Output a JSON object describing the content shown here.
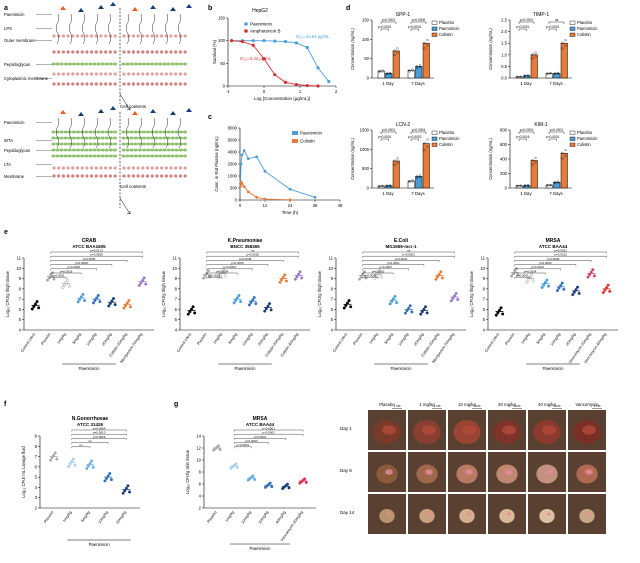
{
  "panel_a": {
    "label": "a",
    "gram_neg_labels": [
      "Paenimicin",
      "LPS",
      "Outer membrane",
      "Peptidoglycan",
      "Cytoplasmic membrane"
    ],
    "gram_pos_labels": [
      "Paenimicin",
      "WTA",
      "Peptidoglycan",
      "LTA",
      "Membrane"
    ],
    "cell_contents_top": "Cell contents",
    "cell_contents_bottom": "Cell contents"
  },
  "panel_b": {
    "label": "b",
    "title": "HepG2",
    "ylabel": "Survival (%)",
    "xlabel": "Log [Concentration (μg/mL)]",
    "legend": [
      "Paenimicin",
      "Amphotericin B"
    ],
    "ic50_paenimicin": "IC₅₀=24.84 μg/mL",
    "ic50_amphotericin": "IC₅₀=2.42 μg/mL",
    "yticks": [
      "150",
      "100",
      "50",
      "0"
    ],
    "xticks": [
      "-1",
      "0",
      "1",
      "2"
    ]
  },
  "panel_c": {
    "label": "c",
    "ylabel": "Conc. in Rat Plasma (ng/mL)",
    "xlabel": "Time (h)",
    "legend": [
      "Paenimicin",
      "Colistin"
    ],
    "yticks": [
      "8000",
      "6000",
      "4000",
      "2000",
      "1000",
      "500",
      "0"
    ],
    "xticks": [
      "0",
      "12",
      "24",
      "36",
      "48"
    ]
  },
  "panel_d": {
    "label": "d",
    "legend": [
      "Placebo",
      "Paenimicin",
      "Colistin"
    ],
    "groups": [
      "1 Day",
      "7 Days"
    ],
    "ylabel": "Concentration (ng/mL)",
    "charts": [
      {
        "title": "SPP-1",
        "yticks": [
          "150",
          "100",
          "50",
          "0"
        ],
        "pvals": [
          "p<0.0001",
          "p=0.0006",
          "p=0.0001",
          "p<0.0001"
        ]
      },
      {
        "title": "TIMP-1",
        "yticks": [
          "2.5",
          "2.0",
          "1.5",
          "1.0",
          "0.5",
          "0.0"
        ],
        "pvals": [
          "p<0.0001",
          "ns",
          "p<0.0001",
          "p=0.0001"
        ]
      },
      {
        "title": "LCN-2",
        "yticks": [
          "1500",
          "1000",
          "500",
          "0"
        ],
        "pvals": [
          "p<0.0001",
          "p=0.0004",
          "p<0.0001",
          "p=0.0002"
        ]
      },
      {
        "title": "KIM-1",
        "yticks": [
          "800",
          "600",
          "400",
          "200",
          "0"
        ],
        "pvals": [
          "p=0.0004",
          "p<0.0001",
          "p=0.0016",
          "p=0.0001"
        ]
      }
    ]
  },
  "panel_e": {
    "label": "e",
    "ylabel": "Log₁₀ CFU/g thigh tissue",
    "yticks": [
      "11",
      "10",
      "9",
      "8",
      "7",
      "6",
      "5",
      "4"
    ],
    "group_label": "Paenimicin",
    "charts": [
      {
        "title": "CRAB",
        "subtitle": "ATCC BAA1605",
        "categories": [
          "Control infect",
          "Placebo",
          "1mg/kg",
          "5mg/kg",
          "10mg/kg",
          "20mg/kg",
          "Colistin 20mg/kg",
          "Meropenem 20mg/kg"
        ],
        "pvals": [
          "p=0.0172",
          "p=0.0005",
          "p=0.0005",
          "p=0.0008",
          "p=0.0005",
          "p=0.0018",
          "p<0.0001"
        ]
      },
      {
        "title": "K.Pneumoniae",
        "subtitle": "BNCC 358365",
        "categories": [
          "Control infect",
          "Placebo",
          "1mg/kg",
          "5mg/kg",
          "10mg/kg",
          "20mg/kg",
          "Colistin 20mg/kg",
          "Colistin 40mg/kg"
        ],
        "pvals": [
          "ns",
          "p=0.0018",
          "p=0.0008",
          "p=0.0005",
          "p=0.0004",
          "p=0.0004",
          "p<0.0001"
        ]
      },
      {
        "title": "E.Coli",
        "subtitle": "MG1655-mcr-1",
        "categories": [
          "Control infect",
          "Placebo",
          "1mg/kg",
          "5mg/kg",
          "10mg/kg",
          "20mg/kg",
          "Colistin 20mg/kg",
          "Meropenem 20mg/kg"
        ],
        "pvals": [
          "ns",
          "p=0.0001",
          "p=0.0001",
          "p=0.0001",
          "p=0.0007",
          "p=0.0002",
          "p<0.0001"
        ]
      },
      {
        "title": "MRSA",
        "subtitle": "ATCC BAA44",
        "categories": [
          "Control infect",
          "Placebo",
          "1mg/kg",
          "5mg/kg",
          "10mg/kg",
          "20mg/kg",
          "Vancomycin 20mg/kg",
          "Vancomycin 40mg/kg"
        ],
        "pvals": [
          "p=0.0031",
          "p=0.0012",
          "p=0.0009",
          "p=0.0025",
          "p=0.0012",
          "p=0.0034",
          "p<0.0001"
        ]
      }
    ]
  },
  "panel_f": {
    "label": "f",
    "title": "N.Gonorrhoeae",
    "subtitle": "ATCC 31426",
    "ylabel": "Log₁₀ CFU/ mL Lavage fluid",
    "yticks": [
      "9",
      "8",
      "7",
      "6",
      "5",
      "4",
      "3",
      "2"
    ],
    "categories": [
      "Placebo",
      "1mg/kg",
      "5mg/kg",
      "10mg/kg",
      "20mg/kg"
    ],
    "group_label": "Paenimicin",
    "pvals": [
      "p=0.0004",
      "p=0.0010",
      "p=0.0026",
      "ns",
      "ns"
    ]
  },
  "panel_g": {
    "label": "g",
    "title": "MRSA",
    "subtitle": "ATCC BAA44",
    "ylabel": "Log₁₀ CFU/g skin tissue",
    "yticks": [
      "14",
      "12",
      "10",
      "8",
      "6",
      "4",
      "2"
    ],
    "categories": [
      "Placebo",
      "1mg/kg",
      "10mg/kg",
      "20mg/kg",
      "40mg/kg",
      "Vancomycin 20mg/kg"
    ],
    "group_label": "Paenimicin",
    "pvals": [
      "p<0.0001",
      "p<0.0001",
      "p=0.0001",
      "p=0.0003",
      "p=0.0001"
    ]
  },
  "wound_photos": {
    "columns": [
      "Placebo",
      "1 mg/kg",
      "10 mg/kg",
      "20 mg/kg",
      "40 mg/kg",
      "Vancomycin"
    ],
    "scale": "1 cm",
    "rows": [
      "Day 1",
      "Day 8",
      "Day 14"
    ],
    "row_colors": [
      [
        "#7a3a2a",
        "#8a3f30",
        "#9a4434",
        "#7e3428",
        "#8d3a2e",
        "#7a2f26"
      ],
      [
        "#8b5a3a",
        "#a0684a",
        "#b87a60",
        "#c08870",
        "#c49080",
        "#b06a52"
      ],
      [
        "#b8956e",
        "#c9a080",
        "#d4b090",
        "#d8b898",
        "#dcc0a4",
        "#caa688"
      ]
    ]
  },
  "chart_data": [
    {
      "type": "line",
      "panel": "b",
      "title": "HepG2",
      "xlabel": "Log [Concentration (μg/mL)]",
      "ylabel": "Survival (%)",
      "xlim": [
        -1,
        2
      ],
      "ylim": [
        0,
        150
      ],
      "series": [
        {
          "name": "Paenimicin",
          "color": "#4a9ed8",
          "x": [
            -0.9,
            -0.6,
            -0.3,
            0.0,
            0.3,
            0.6,
            0.9,
            1.2,
            1.5,
            1.8
          ],
          "y": [
            100,
            100,
            100,
            100,
            99,
            98,
            95,
            85,
            40,
            10
          ]
        },
        {
          "name": "Amphotericin B",
          "color": "#d03030",
          "x": [
            -0.9,
            -0.6,
            -0.3,
            0.0,
            0.3,
            0.6,
            0.9,
            1.2,
            1.5
          ],
          "y": [
            100,
            98,
            90,
            60,
            25,
            8,
            3,
            1,
            0
          ]
        }
      ]
    },
    {
      "type": "line",
      "panel": "c",
      "xlabel": "Time (h)",
      "ylabel": "Conc. in Rat Plasma (ng/mL)",
      "xlim": [
        0,
        48
      ],
      "series": [
        {
          "name": "Paenimicin",
          "color": "#4a9ed8",
          "x": [
            0.25,
            0.5,
            1,
            2,
            4,
            8,
            12,
            24,
            36
          ],
          "y": [
            1800,
            4000,
            5000,
            5500,
            4600,
            4800,
            3200,
            1200,
            300
          ]
        },
        {
          "name": "Colistin",
          "color": "#e87a3a",
          "x": [
            0.25,
            0.5,
            1,
            2,
            4,
            8,
            12,
            24
          ],
          "y": [
            1500,
            2000,
            1800,
            1500,
            900,
            300,
            100,
            20
          ]
        }
      ]
    },
    {
      "type": "bar",
      "panel": "d",
      "title": "SPP-1",
      "categories": [
        "1 Day",
        "7 Days"
      ],
      "ylim": [
        0,
        150
      ],
      "series": [
        {
          "name": "Placebo",
          "values": [
            18,
            20
          ]
        },
        {
          "name": "Paenimicin",
          "values": [
            12,
            30
          ]
        },
        {
          "name": "Colistin",
          "values": [
            70,
            90
          ]
        }
      ]
    },
    {
      "type": "bar",
      "panel": "d",
      "title": "TIMP-1",
      "categories": [
        "1 Day",
        "7 Days"
      ],
      "ylim": [
        0,
        2.5
      ],
      "series": [
        {
          "name": "Placebo",
          "values": [
            0.05,
            0.2
          ]
        },
        {
          "name": "Paenimicin",
          "values": [
            0.1,
            0.2
          ]
        },
        {
          "name": "Colistin",
          "values": [
            1.0,
            1.5
          ]
        }
      ]
    },
    {
      "type": "bar",
      "panel": "d",
      "title": "LCN-2",
      "categories": [
        "1 Day",
        "7 Days"
      ],
      "ylim": [
        0,
        1500
      ],
      "series": [
        {
          "name": "Placebo",
          "values": [
            50,
            180
          ]
        },
        {
          "name": "Paenimicin",
          "values": [
            60,
            300
          ]
        },
        {
          "name": "Colistin",
          "values": [
            700,
            1150
          ]
        }
      ]
    },
    {
      "type": "bar",
      "panel": "d",
      "title": "KIM-1",
      "categories": [
        "1 Day",
        "7 Days"
      ],
      "ylim": [
        0,
        800
      ],
      "series": [
        {
          "name": "Placebo",
          "values": [
            30,
            40
          ]
        },
        {
          "name": "Paenimicin",
          "values": [
            35,
            80
          ]
        },
        {
          "name": "Colistin",
          "values": [
            380,
            480
          ]
        }
      ]
    },
    {
      "type": "scatter",
      "panel": "e",
      "title": "CRAB ATCC BAA1605",
      "categories": [
        "Control infect",
        "Placebo",
        "1mg/kg",
        "5mg/kg",
        "10mg/kg",
        "20mg/kg",
        "Colistin 20mg/kg",
        "Meropenem 20mg/kg"
      ],
      "means": [
        6.4,
        9.2,
        8.5,
        7.1,
        7.0,
        6.7,
        6.5,
        8.7
      ],
      "colors": [
        "#000000",
        "#aaaaaa",
        "#ffffff",
        "#4a9ed8",
        "#3470b8",
        "#1a3a78",
        "#e87a3a",
        "#9a78c8"
      ],
      "ylim": [
        4,
        11
      ]
    },
    {
      "type": "scatter",
      "panel": "e",
      "title": "K.Pneumoniae BNCC 358365",
      "categories": [
        "Control infect",
        "Placebo",
        "1mg/kg",
        "5mg/kg",
        "10mg/kg",
        "20mg/kg",
        "Colistin 20mg/kg",
        "Colistin 40mg/kg"
      ],
      "means": [
        5.9,
        9.4,
        9.5,
        7.0,
        6.8,
        6.2,
        9.0,
        9.3
      ],
      "colors": [
        "#000000",
        "#aaaaaa",
        "#ffffff",
        "#4a9ed8",
        "#3470b8",
        "#1a3a78",
        "#e87a3a",
        "#9a78c8"
      ],
      "ylim": [
        4,
        11
      ]
    },
    {
      "type": "scatter",
      "panel": "e",
      "title": "E.Coli MG1655-mcr-1",
      "categories": [
        "Control infect",
        "Placebo",
        "1mg/kg",
        "5mg/kg",
        "10mg/kg",
        "20mg/kg",
        "Colistin 20mg/kg",
        "Meropenem 20mg/kg"
      ],
      "means": [
        6.5,
        9.3,
        9.4,
        6.9,
        6.0,
        5.9,
        9.3,
        7.2
      ],
      "colors": [
        "#000000",
        "#aaaaaa",
        "#ffffff",
        "#4a9ed8",
        "#3470b8",
        "#1a3a78",
        "#e87a3a",
        "#9a78c8"
      ],
      "ylim": [
        4,
        11
      ]
    },
    {
      "type": "scatter",
      "panel": "e",
      "title": "MRSA ATCC BAA44",
      "categories": [
        "Control infect",
        "Placebo",
        "1mg/kg",
        "5mg/kg",
        "10mg/kg",
        "20mg/kg",
        "Vancomycin 20mg/kg",
        "Vancomycin 40mg/kg"
      ],
      "means": [
        5.8,
        9.6,
        9.0,
        8.5,
        8.2,
        7.8,
        9.5,
        8.0
      ],
      "colors": [
        "#000000",
        "#aaaaaa",
        "#ffffff",
        "#4a9ed8",
        "#3470b8",
        "#1a3a78",
        "#d04070",
        "#e03030"
      ],
      "ylim": [
        4,
        11
      ]
    },
    {
      "type": "scatter",
      "panel": "f",
      "title": "N.Gonorrhoeae ATCC 31426",
      "categories": [
        "Placebo",
        "1mg/kg",
        "5mg/kg",
        "10mg/kg",
        "20mg/kg"
      ],
      "means": [
        7.0,
        6.4,
        6.2,
        5.0,
        3.8
      ],
      "colors": [
        "#aaaaaa",
        "#a8d0f0",
        "#6aaee0",
        "#3470b8",
        "#1a3a78"
      ],
      "ylim": [
        2,
        9
      ]
    },
    {
      "type": "scatter",
      "panel": "g",
      "title": "MRSA ATCC BAA44",
      "categories": [
        "Placebo",
        "1mg/kg",
        "10mg/kg",
        "20mg/kg",
        "40mg/kg",
        "Vancomycin 20mg/kg"
      ],
      "means": [
        12.0,
        9.0,
        7.0,
        5.8,
        5.6,
        6.5
      ],
      "colors": [
        "#aaaaaa",
        "#a8d0f0",
        "#6aaee0",
        "#3470b8",
        "#1a3a78",
        "#e03050"
      ],
      "ylim": [
        2,
        14
      ]
    }
  ]
}
